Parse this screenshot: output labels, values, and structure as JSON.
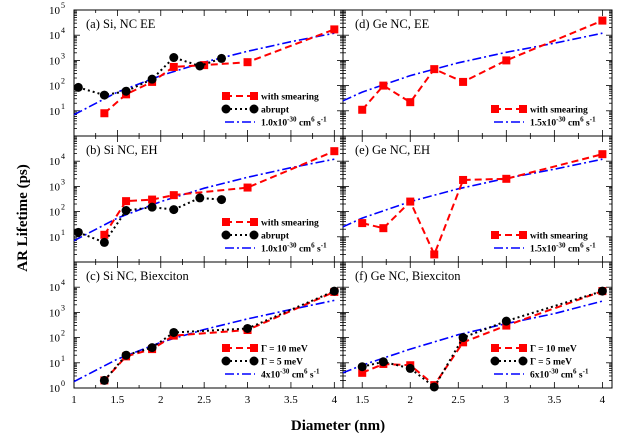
{
  "figure": {
    "xlabel": "Diameter (nm)",
    "ylabel": "AR Lifetime (ps)",
    "colors": {
      "smearing": "#ff0000",
      "abrupt": "#000000",
      "fit": "#0000ff"
    }
  },
  "chart_data": [
    {
      "type": "line",
      "id": "a",
      "title": "(a) Si, NC EE",
      "xlim": [
        1,
        4.1
      ],
      "ylim": [
        1,
        100000
      ],
      "yscale": "log",
      "series": [
        {
          "name": "with smearing",
          "style": "smearing",
          "x": [
            1.35,
            1.6,
            1.9,
            2.15,
            2.5,
            3.0,
            4.0
          ],
          "values": [
            8,
            45,
            140,
            550,
            650,
            850,
            17000
          ]
        },
        {
          "name": "abrupt",
          "style": "abrupt",
          "x": [
            1.05,
            1.35,
            1.6,
            1.9,
            2.15,
            2.45,
            2.7
          ],
          "values": [
            85,
            42,
            60,
            180,
            1300,
            600,
            1200
          ]
        },
        {
          "name": "1.0x10^-30 cm^6 s^-1",
          "style": "fit",
          "x": [
            1.0,
            1.5,
            2.0,
            2.5,
            3.0,
            3.5,
            4.0
          ],
          "values": [
            7,
            55,
            250,
            850,
            2300,
            5500,
            12000
          ]
        }
      ]
    },
    {
      "type": "line",
      "id": "b",
      "title": "(b) Si NC, EH",
      "xlim": [
        1,
        4.1
      ],
      "ylim": [
        1,
        100000
      ],
      "yscale": "log",
      "series": [
        {
          "name": "with smearing",
          "style": "smearing",
          "x": [
            1.35,
            1.6,
            1.9,
            2.15,
            3.0,
            4.0
          ],
          "values": [
            12,
            260,
            300,
            450,
            900,
            25000
          ]
        },
        {
          "name": "abrupt",
          "style": "abrupt",
          "x": [
            1.05,
            1.35,
            1.6,
            1.9,
            2.15,
            2.45,
            2.7
          ],
          "values": [
            15,
            6,
            110,
            150,
            120,
            350,
            300
          ]
        },
        {
          "name": "1.0x10^-30 cm^6 s^-1",
          "style": "fit",
          "x": [
            1.0,
            1.5,
            2.0,
            2.5,
            3.0,
            3.5,
            4.0
          ],
          "values": [
            7,
            55,
            250,
            850,
            2300,
            5500,
            12000
          ]
        }
      ]
    },
    {
      "type": "line",
      "id": "c",
      "title": "(c) Si NC, Biexciton",
      "xlim": [
        1,
        4.1
      ],
      "ylim": [
        1,
        100000
      ],
      "yscale": "log",
      "series": [
        {
          "name": "Γ = 10   meV",
          "style": "smearing",
          "x": [
            1.35,
            1.6,
            1.9,
            2.15,
            3.0,
            4.0
          ],
          "values": [
            2,
            18,
            35,
            120,
            200,
            6500
          ]
        },
        {
          "name": "Γ = 5    meV",
          "style": "abrupt",
          "x": [
            1.35,
            1.6,
            1.9,
            2.15,
            3.0,
            4.0
          ],
          "values": [
            2,
            20,
            40,
            160,
            230,
            7000
          ]
        },
        {
          "name": "4x10^-30 cm^6 s^-1",
          "style": "fit",
          "x": [
            1.0,
            1.5,
            2.0,
            2.5,
            3.0,
            3.5,
            4.0
          ],
          "values": [
            1.8,
            14,
            65,
            210,
            550,
            1300,
            3000
          ]
        }
      ]
    },
    {
      "type": "line",
      "id": "d",
      "title": "(d) Ge NC, EE",
      "xlim": [
        1.3,
        4.1
      ],
      "ylim": [
        1,
        100000
      ],
      "yscale": "log",
      "series": [
        {
          "name": "with smearing",
          "style": "smearing",
          "x": [
            1.5,
            1.72,
            2.0,
            2.25,
            2.55,
            3.0,
            4.0
          ],
          "values": [
            11,
            100,
            22,
            450,
            140,
            1000,
            38000
          ]
        },
        {
          "name": "1.5x10^-30 cm^6 s^-1",
          "style": "fit",
          "x": [
            1.3,
            1.5,
            2.0,
            2.5,
            3.0,
            3.5,
            4.0
          ],
          "values": [
            25,
            55,
            250,
            800,
            2100,
            4800,
            12000
          ]
        }
      ]
    },
    {
      "type": "line",
      "id": "e",
      "title": "(e) Ge NC, EH",
      "xlim": [
        1.3,
        4.1
      ],
      "ylim": [
        1,
        100000
      ],
      "yscale": "log",
      "series": [
        {
          "name": "with smearing",
          "style": "smearing",
          "x": [
            1.5,
            1.72,
            2.0,
            2.25,
            2.55,
            3.0,
            4.0
          ],
          "values": [
            35,
            22,
            250,
            2,
            1800,
            2000,
            19000
          ]
        },
        {
          "name": "1.5x10^-30 cm^6 s^-1",
          "style": "fit",
          "x": [
            1.3,
            1.5,
            2.0,
            2.5,
            3.0,
            3.5,
            4.0
          ],
          "values": [
            25,
            55,
            250,
            800,
            2100,
            4800,
            12000
          ]
        }
      ]
    },
    {
      "type": "line",
      "id": "f",
      "title": "(f) Ge NC, Biexciton",
      "xlim": [
        1.3,
        4.1
      ],
      "ylim": [
        1,
        100000
      ],
      "yscale": "log",
      "series": [
        {
          "name": "Γ = 10   meV",
          "style": "smearing",
          "x": [
            1.5,
            1.72,
            2.0,
            2.25,
            2.55,
            3.0,
            4.0
          ],
          "values": [
            4,
            9,
            8,
            1.3,
            65,
            300,
            7000
          ]
        },
        {
          "name": "Γ = 5    meV",
          "style": "abrupt",
          "x": [
            1.5,
            1.72,
            2.0,
            2.25,
            2.55,
            3.0,
            4.0
          ],
          "values": [
            7,
            11,
            6,
            1.1,
            100,
            450,
            7000
          ]
        },
        {
          "name": "6x10^-30 cm^6 s^-1",
          "style": "fit",
          "x": [
            1.3,
            1.5,
            2.0,
            2.5,
            3.0,
            3.5,
            4.0
          ],
          "values": [
            4,
            8,
            35,
            130,
            360,
            900,
            2800
          ]
        }
      ]
    }
  ]
}
